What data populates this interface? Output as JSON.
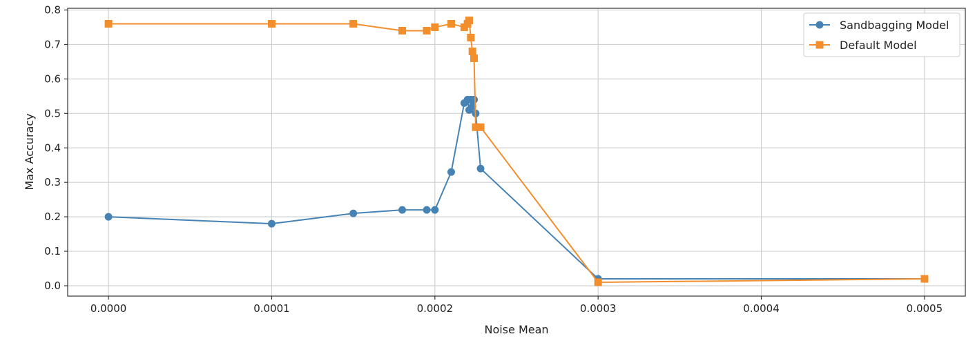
{
  "chart_data": {
    "type": "line",
    "title": "",
    "xlabel": "Noise Mean",
    "ylabel": "Max Accuracy",
    "xlim": [
      -2.5e-05,
      0.000525
    ],
    "ylim": [
      -0.03,
      0.805
    ],
    "xticks": [
      0.0,
      0.0001,
      0.0002,
      0.0003,
      0.0004,
      0.0005
    ],
    "xtick_labels": [
      "0.0000",
      "0.0001",
      "0.0002",
      "0.0003",
      "0.0004",
      "0.0005"
    ],
    "yticks": [
      0.0,
      0.1,
      0.2,
      0.3,
      0.4,
      0.5,
      0.6,
      0.7,
      0.8
    ],
    "ytick_labels": [
      "0.0",
      "0.1",
      "0.2",
      "0.3",
      "0.4",
      "0.5",
      "0.6",
      "0.7",
      "0.8"
    ],
    "grid": true,
    "legend_position": "top-right",
    "series": [
      {
        "name": "Sandbagging Model",
        "color": "#4682b4",
        "marker": "circle",
        "x": [
          0.0,
          0.0001,
          0.00015,
          0.00018,
          0.000195,
          0.0002,
          0.00021,
          0.000218,
          0.00022,
          0.000221,
          0.000222,
          0.000223,
          0.000224,
          0.000225,
          0.000228,
          0.0003,
          0.0005
        ],
        "y": [
          0.2,
          0.18,
          0.21,
          0.22,
          0.22,
          0.22,
          0.33,
          0.53,
          0.54,
          0.51,
          0.54,
          0.52,
          0.54,
          0.5,
          0.34,
          0.02,
          0.02
        ]
      },
      {
        "name": "Default Model",
        "color": "#f28e2b",
        "marker": "square",
        "x": [
          0.0,
          0.0001,
          0.00015,
          0.00018,
          0.000195,
          0.0002,
          0.00021,
          0.000218,
          0.00022,
          0.000221,
          0.000222,
          0.000223,
          0.000224,
          0.000225,
          0.000228,
          0.0003,
          0.0005
        ],
        "y": [
          0.76,
          0.76,
          0.76,
          0.74,
          0.74,
          0.75,
          0.76,
          0.75,
          0.76,
          0.77,
          0.72,
          0.68,
          0.66,
          0.46,
          0.46,
          0.01,
          0.02
        ]
      }
    ]
  }
}
